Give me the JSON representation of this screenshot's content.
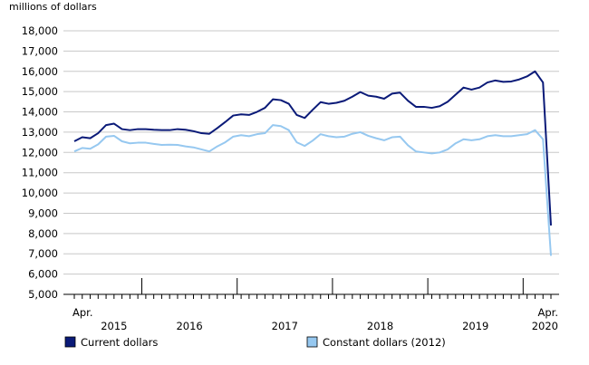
{
  "chart_data": {
    "type": "line",
    "ylabel": "millions of dollars",
    "ylim": [
      5000,
      18000
    ],
    "yticks": [
      5000,
      6000,
      7000,
      8000,
      9000,
      10000,
      11000,
      12000,
      13000,
      14000,
      15000,
      16000,
      17000,
      18000
    ],
    "ytick_labels": [
      "5,000",
      "6,000",
      "7,000",
      "8,000",
      "9,000",
      "10,000",
      "11,000",
      "12,000",
      "13,000",
      "14,000",
      "15,000",
      "16,000",
      "17,000",
      "18,000"
    ],
    "x": [
      "2015-04",
      "2015-05",
      "2015-06",
      "2015-07",
      "2015-08",
      "2015-09",
      "2015-10",
      "2015-11",
      "2015-12",
      "2016-01",
      "2016-02",
      "2016-03",
      "2016-04",
      "2016-05",
      "2016-06",
      "2016-07",
      "2016-08",
      "2016-09",
      "2016-10",
      "2016-11",
      "2016-12",
      "2017-01",
      "2017-02",
      "2017-03",
      "2017-04",
      "2017-05",
      "2017-06",
      "2017-07",
      "2017-08",
      "2017-09",
      "2017-10",
      "2017-11",
      "2017-12",
      "2018-01",
      "2018-02",
      "2018-03",
      "2018-04",
      "2018-05",
      "2018-06",
      "2018-07",
      "2018-08",
      "2018-09",
      "2018-10",
      "2018-11",
      "2018-12",
      "2019-01",
      "2019-02",
      "2019-03",
      "2019-04",
      "2019-05",
      "2019-06",
      "2019-07",
      "2019-08",
      "2019-09",
      "2019-10",
      "2019-11",
      "2019-12",
      "2020-01",
      "2020-02",
      "2020-03",
      "2020-04"
    ],
    "x_axis_labels": [
      {
        "month": "Apr.",
        "year": "2015"
      },
      {
        "month": "",
        "year": "2016"
      },
      {
        "month": "",
        "year": "2017"
      },
      {
        "month": "",
        "year": "2018"
      },
      {
        "month": "",
        "year": "2019"
      },
      {
        "month": "Apr.",
        "year": "2020"
      }
    ],
    "series": [
      {
        "name": "Current dollars",
        "color": "#0a1a78",
        "values": [
          12550,
          12750,
          12700,
          12950,
          13350,
          13420,
          13150,
          13100,
          13150,
          13150,
          13120,
          13100,
          13100,
          13150,
          13120,
          13050,
          12950,
          12920,
          13200,
          13500,
          13820,
          13880,
          13850,
          14000,
          14200,
          14620,
          14580,
          14400,
          13850,
          13700,
          14100,
          14480,
          14400,
          14450,
          14550,
          14750,
          14980,
          14800,
          14750,
          14650,
          14900,
          14950,
          14550,
          14250,
          14250,
          14200,
          14280,
          14500,
          14850,
          15200,
          15100,
          15200,
          15450,
          15550,
          15480,
          15500,
          15600,
          15750,
          16000,
          15450,
          8400
        ]
      },
      {
        "name": "Constant dollars (2012)",
        "color": "#96c8f0",
        "values": [
          12050,
          12220,
          12180,
          12400,
          12780,
          12820,
          12550,
          12450,
          12480,
          12480,
          12420,
          12370,
          12380,
          12370,
          12300,
          12250,
          12150,
          12050,
          12300,
          12500,
          12780,
          12850,
          12800,
          12900,
          12950,
          13350,
          13300,
          13100,
          12500,
          12320,
          12580,
          12900,
          12800,
          12750,
          12780,
          12920,
          13000,
          12820,
          12700,
          12600,
          12750,
          12780,
          12350,
          12050,
          12000,
          11950,
          12000,
          12150,
          12450,
          12650,
          12600,
          12650,
          12800,
          12850,
          12800,
          12800,
          12850,
          12900,
          13100,
          12650,
          6900
        ]
      }
    ],
    "grid": "horizontal",
    "legend_position": "bottom"
  }
}
